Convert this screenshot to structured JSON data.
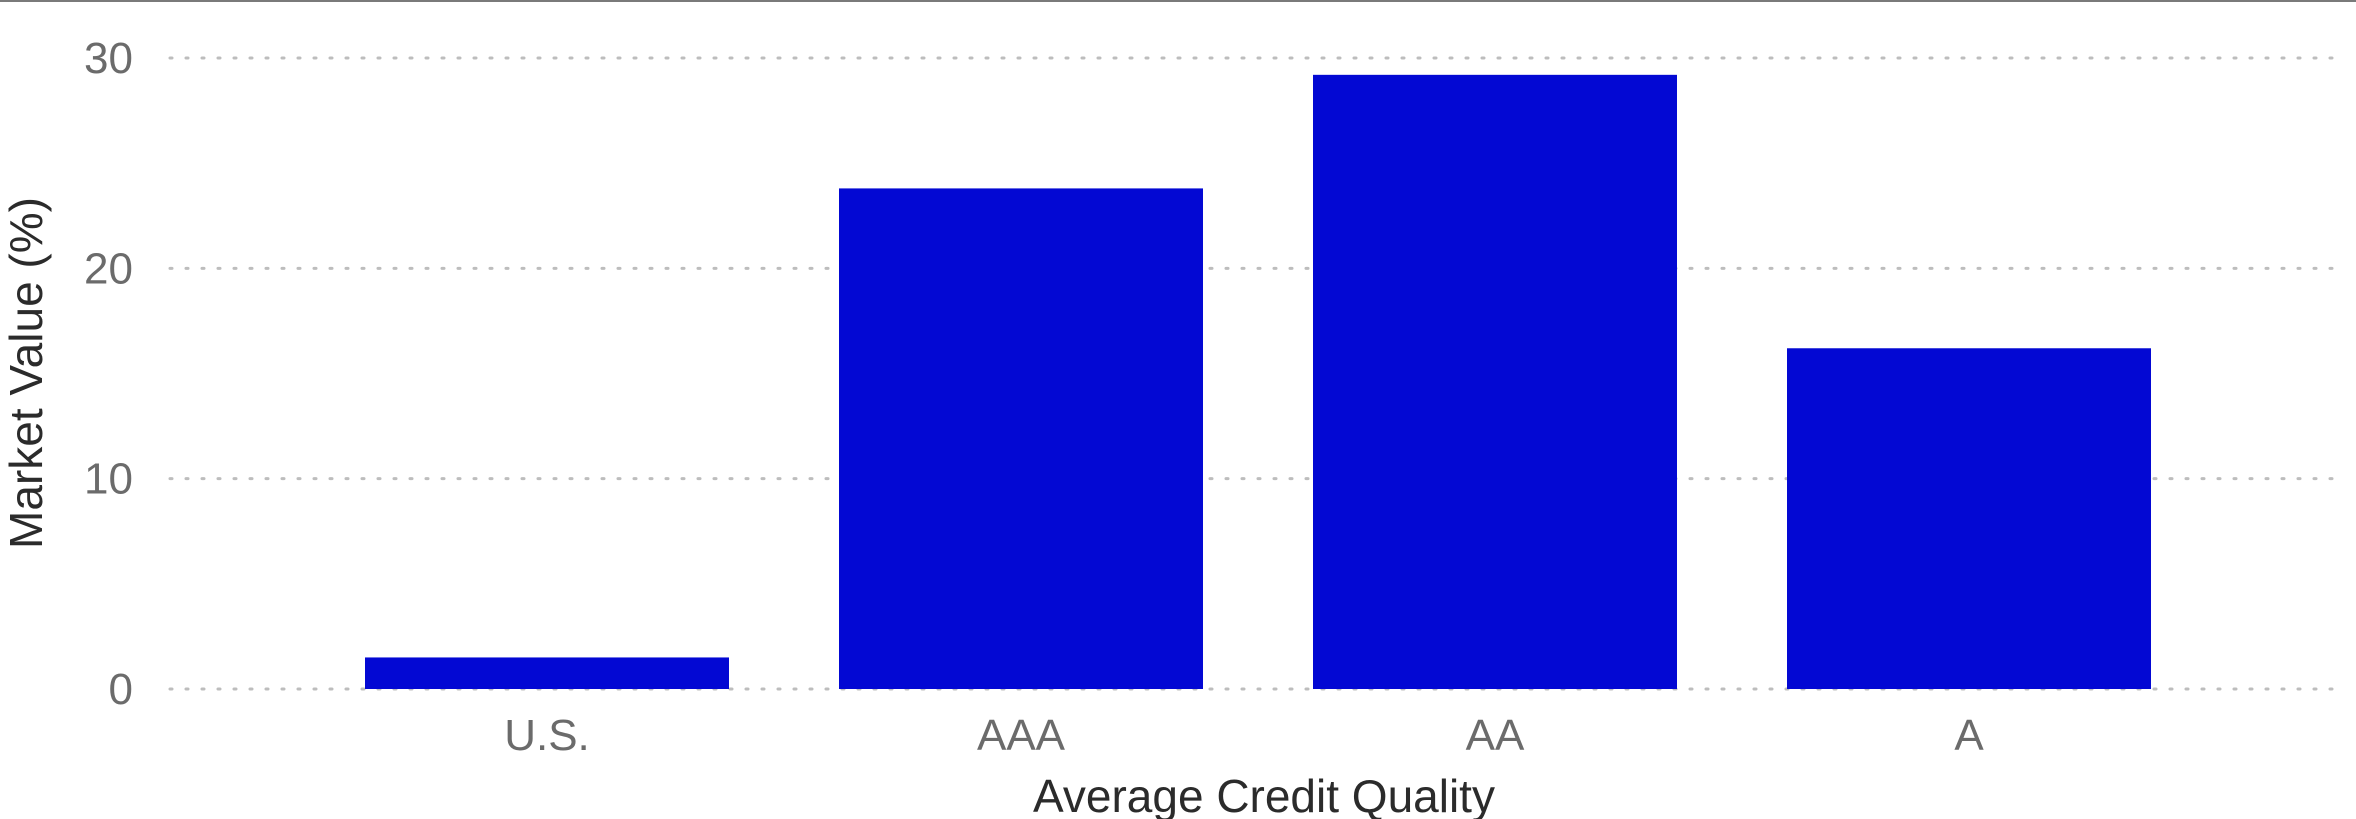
{
  "chart_data": {
    "type": "bar",
    "categories": [
      "U.S.",
      "AAA",
      "AA",
      "A"
    ],
    "values": [
      1.5,
      23.8,
      29.2,
      16.2
    ],
    "xlabel": "Average Credit Quality",
    "ylabel": "Market Value (%)",
    "ylim": [
      0,
      30
    ],
    "yticks": [
      0,
      10,
      20,
      30
    ],
    "grid": true,
    "grid_style": "dotted",
    "bar_color": "#0308d3"
  }
}
